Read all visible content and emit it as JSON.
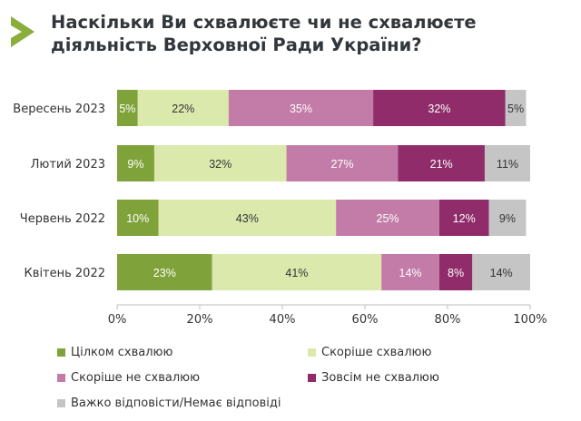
{
  "title": "Наскільки Ви схвалюєте чи не схвалюєте діяльність Верховної Ради України?",
  "colors": {
    "accent": "#8aad3c",
    "text": "#32373c",
    "axis": "#bfbfbf"
  },
  "chart_data": {
    "type": "bar",
    "orientation": "horizontal",
    "stacked": true,
    "title": "Наскільки Ви схвалюєте чи не схвалюєте діяльність Верховної Ради України?",
    "categories": [
      "Вересень 2023",
      "Лютий 2023",
      "Червень 2022",
      "Квітень 2022"
    ],
    "series": [
      {
        "name": "Цілком схвалюю",
        "color": "#7fa23a",
        "label_color": "#ffffff",
        "values": [
          5,
          9,
          10,
          23
        ]
      },
      {
        "name": "Скоріше схвалюю",
        "color": "#dbe9ad",
        "label_color": "#333333",
        "values": [
          22,
          32,
          43,
          41
        ]
      },
      {
        "name": "Скоріше не схвалюю",
        "color": "#c27ca7",
        "label_color": "#ffffff",
        "values": [
          35,
          27,
          25,
          14
        ]
      },
      {
        "name": "Зовсім не схвалюю",
        "color": "#8f2c69",
        "label_color": "#ffffff",
        "values": [
          32,
          21,
          12,
          8
        ]
      },
      {
        "name": "Важко відповісти/Немає відповіді",
        "color": "#c5c5c5",
        "label_color": "#333333",
        "values": [
          5,
          11,
          9,
          14
        ]
      }
    ],
    "xlim": [
      0,
      100
    ],
    "xticks": [
      "0%",
      "20%",
      "40%",
      "60%",
      "80%",
      "100%"
    ],
    "xlabel": "",
    "ylabel": "",
    "grid": false,
    "legend_position": "bottom"
  }
}
